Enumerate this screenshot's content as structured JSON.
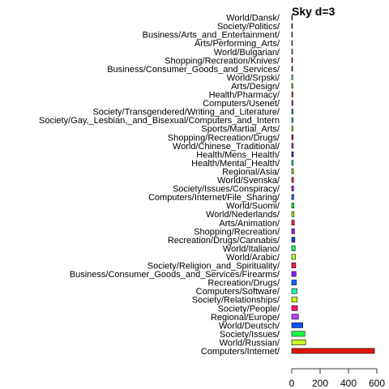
{
  "chart_data": {
    "type": "bar",
    "orientation": "horizontal",
    "title": "Sky d=3",
    "xlim": [
      0,
      600
    ],
    "xticks": [
      0,
      200,
      400,
      600
    ],
    "grid": false,
    "legend": "none",
    "categories": [
      "Computers/Internet/",
      "World/Russian/",
      "Society/Issues/",
      "World/Deutsch/",
      "Regional/Europe/",
      "Society/People/",
      "Society/Relationships/",
      "Computers/Software/",
      "Recreation/Drugs/",
      "Business/Consumer_Goods_and_Services/Firearms/",
      "Society/Religion_and_Spirituality/",
      "World/Arabic/",
      "World/Italiano/",
      "Recreation/Drugs/Cannabis/",
      "Shopping/Recreation/",
      "Arts/Animation/",
      "World/Nederlands/",
      "World/Suomi/",
      "Computers/Internet/File_Sharing/",
      "Society/Issues/Conspiracy/",
      "World/Svenska/",
      "Regional/Asia/",
      "Health/Mental_Health/",
      "Health/Mens_Health/",
      "World/Chinese_Traditional/",
      "Shopping/Recreation/Drugs/",
      "Sports/Martial_Arts/",
      "Society/Gay,_Lesbian,_and_Bisexual/Computers_and_Intern",
      "Society/Transgendered/Writing_and_Literature/",
      "Computers/Usenet/",
      "Health/Pharmacy/",
      "Arts/Design/",
      "World/Srpski/",
      "Business/Consumer_Goods_and_Services/",
      "Shopping/Recreation/Knives/",
      "World/Bulgarian/",
      "Arts/Performing_Arts/",
      "Business/Arts_and_Entertainment/",
      "Society/Politics/",
      "World/Dansk/"
    ],
    "values": [
      583,
      98,
      93,
      78,
      47,
      40,
      38,
      37,
      32,
      30,
      28,
      26,
      24,
      22,
      19,
      18,
      16,
      15,
      14,
      13,
      12,
      12,
      11,
      11,
      10,
      10,
      9,
      9,
      8,
      8,
      8,
      7,
      7,
      6,
      6,
      6,
      5,
      5,
      5,
      4
    ],
    "colors": [
      "#e0140e",
      "#c7ff2a",
      "#1aff43",
      "#0a55ff",
      "#b042ff",
      "#ff1a73",
      "#c8ff1a",
      "#1affa0",
      "#0a67ff",
      "#8a1aff",
      "#ff1a4a",
      "#c8ff29",
      "#1aff6a",
      "#1a3fff",
      "#9b1aff",
      "#ff1a2e",
      "#a8ff1a",
      "#1aff3a",
      "#1a6bff",
      "#bb1aff",
      "#ff3a1a",
      "#7aff1a",
      "#1aff8a",
      "#1a38ff",
      "#e11aff",
      "#ff1a3f",
      "#a5ff1a",
      "#1affb6",
      "#1a8cff",
      "#f41aff",
      "#ff4a1a",
      "#56ff1a",
      "#1affc8",
      "#1a55ff",
      "#ff1ad0",
      "#ff7a1a",
      "#4dff1a",
      "#1affe0",
      "#1a3fff",
      "#ff1a9a"
    ]
  }
}
